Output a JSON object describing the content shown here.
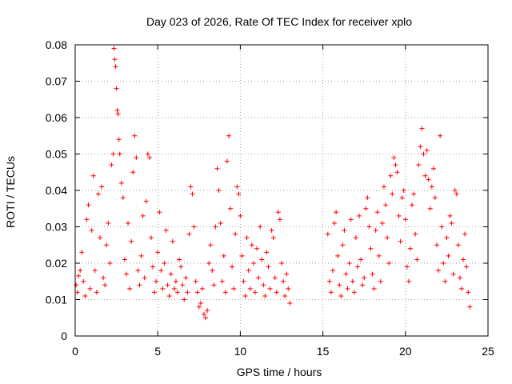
{
  "chart_data": {
    "type": "scatter",
    "title": "Day 023 of 2026, Rate Of TEC Index for receiver xplo",
    "xlabel": "GPS time / hours",
    "ylabel": "ROTI / TECUs",
    "xlim": [
      0,
      25
    ],
    "ylim": [
      0,
      0.08
    ],
    "xticks": [
      0,
      5,
      10,
      15,
      20,
      25
    ],
    "xtick_labels": [
      "0",
      "5",
      "10",
      "15",
      "20",
      "25"
    ],
    "yticks": [
      0,
      0.01,
      0.02,
      0.03,
      0.04,
      0.05,
      0.06,
      0.07,
      0.08
    ],
    "ytick_labels": [
      "0",
      "0.01",
      "0.02",
      "0.03",
      "0.04",
      "0.05",
      "0.06",
      "0.07",
      "0.08"
    ],
    "grid": true,
    "marker": "+",
    "color": "#ff0000",
    "series": [
      {
        "name": "ROTI",
        "points": [
          [
            0.05,
            0.014
          ],
          [
            0.12,
            0.012
          ],
          [
            0.2,
            0.0165
          ],
          [
            0.3,
            0.018
          ],
          [
            0.4,
            0.023
          ],
          [
            0.5,
            0.015
          ],
          [
            0.6,
            0.011
          ],
          [
            0.7,
            0.032
          ],
          [
            0.8,
            0.036
          ],
          [
            0.9,
            0.013
          ],
          [
            1.0,
            0.029
          ],
          [
            1.1,
            0.044
          ],
          [
            1.2,
            0.018
          ],
          [
            1.3,
            0.012
          ],
          [
            1.4,
            0.039
          ],
          [
            1.5,
            0.027
          ],
          [
            1.6,
            0.041
          ],
          [
            1.7,
            0.016
          ],
          [
            1.8,
            0.014
          ],
          [
            1.9,
            0.025
          ],
          [
            2.0,
            0.031
          ],
          [
            2.1,
            0.02
          ],
          [
            2.2,
            0.047
          ],
          [
            2.3,
            0.05
          ],
          [
            2.35,
            0.079
          ],
          [
            2.4,
            0.076
          ],
          [
            2.45,
            0.074
          ],
          [
            2.5,
            0.068
          ],
          [
            2.55,
            0.062
          ],
          [
            2.6,
            0.061
          ],
          [
            2.65,
            0.054
          ],
          [
            2.7,
            0.05
          ],
          [
            2.8,
            0.042
          ],
          [
            2.9,
            0.038
          ],
          [
            3.0,
            0.021
          ],
          [
            3.1,
            0.017
          ],
          [
            3.2,
            0.031
          ],
          [
            3.3,
            0.013
          ],
          [
            3.4,
            0.026
          ],
          [
            3.5,
            0.045
          ],
          [
            3.6,
            0.055
          ],
          [
            3.7,
            0.049
          ],
          [
            3.8,
            0.018
          ],
          [
            3.9,
            0.014
          ],
          [
            4.0,
            0.022
          ],
          [
            4.1,
            0.033
          ],
          [
            4.2,
            0.016
          ],
          [
            4.3,
            0.037
          ],
          [
            4.4,
            0.05
          ],
          [
            4.5,
            0.049
          ],
          [
            4.6,
            0.027
          ],
          [
            4.7,
            0.019
          ],
          [
            4.8,
            0.012
          ],
          [
            4.9,
            0.015
          ],
          [
            5.0,
            0.023
          ],
          [
            5.1,
            0.034
          ],
          [
            5.2,
            0.018
          ],
          [
            5.3,
            0.013
          ],
          [
            5.4,
            0.02
          ],
          [
            5.5,
            0.029
          ],
          [
            5.6,
            0.014
          ],
          [
            5.7,
            0.011
          ],
          [
            5.8,
            0.017
          ],
          [
            5.9,
            0.026
          ],
          [
            6.0,
            0.013
          ],
          [
            6.1,
            0.015
          ],
          [
            6.2,
            0.012
          ],
          [
            6.3,
            0.021
          ],
          [
            6.4,
            0.019
          ],
          [
            6.5,
            0.014
          ],
          [
            6.6,
            0.01
          ],
          [
            6.7,
            0.016
          ],
          [
            6.8,
            0.012
          ],
          [
            6.9,
            0.028
          ],
          [
            7.0,
            0.041
          ],
          [
            7.1,
            0.039
          ],
          [
            7.2,
            0.03
          ],
          [
            7.3,
            0.015
          ],
          [
            7.4,
            0.012
          ],
          [
            7.5,
            0.008
          ],
          [
            7.6,
            0.009
          ],
          [
            7.7,
            0.013
          ],
          [
            7.8,
            0.006
          ],
          [
            7.9,
            0.005
          ],
          [
            8.0,
            0.007
          ],
          [
            8.1,
            0.02
          ],
          [
            8.2,
            0.025
          ],
          [
            8.3,
            0.018
          ],
          [
            8.4,
            0.014
          ],
          [
            8.5,
            0.03
          ],
          [
            8.6,
            0.046
          ],
          [
            8.7,
            0.04
          ],
          [
            8.8,
            0.031
          ],
          [
            8.9,
            0.015
          ],
          [
            9.0,
            0.022
          ],
          [
            9.1,
            0.012
          ],
          [
            9.2,
            0.048
          ],
          [
            9.3,
            0.055
          ],
          [
            9.4,
            0.035
          ],
          [
            9.5,
            0.019
          ],
          [
            9.6,
            0.013
          ],
          [
            9.7,
            0.028
          ],
          [
            9.8,
            0.041
          ],
          [
            9.9,
            0.039
          ],
          [
            10.0,
            0.033
          ],
          [
            10.1,
            0.022
          ],
          [
            10.2,
            0.015
          ],
          [
            10.3,
            0.011
          ],
          [
            10.4,
            0.027
          ],
          [
            10.5,
            0.018
          ],
          [
            10.6,
            0.013
          ],
          [
            10.7,
            0.025
          ],
          [
            10.8,
            0.02
          ],
          [
            10.9,
            0.012
          ],
          [
            11.0,
            0.024
          ],
          [
            11.1,
            0.016
          ],
          [
            11.2,
            0.03
          ],
          [
            11.3,
            0.021
          ],
          [
            11.4,
            0.014
          ],
          [
            11.5,
            0.011
          ],
          [
            11.6,
            0.023
          ],
          [
            11.7,
            0.019
          ],
          [
            11.8,
            0.013
          ],
          [
            11.9,
            0.029
          ],
          [
            12.0,
            0.027
          ],
          [
            12.1,
            0.016
          ],
          [
            12.2,
            0.012
          ],
          [
            12.3,
            0.034
          ],
          [
            12.4,
            0.032
          ],
          [
            12.5,
            0.02
          ],
          [
            12.6,
            0.015
          ],
          [
            12.7,
            0.011
          ],
          [
            12.8,
            0.017
          ],
          [
            12.9,
            0.013
          ],
          [
            13.0,
            0.009
          ],
          [
            15.3,
            0.028
          ],
          [
            15.4,
            0.015
          ],
          [
            15.5,
            0.012
          ],
          [
            15.6,
            0.018
          ],
          [
            15.7,
            0.031
          ],
          [
            15.8,
            0.034
          ],
          [
            15.9,
            0.022
          ],
          [
            16.0,
            0.014
          ],
          [
            16.1,
            0.011
          ],
          [
            16.2,
            0.025
          ],
          [
            16.3,
            0.029
          ],
          [
            16.4,
            0.017
          ],
          [
            16.5,
            0.013
          ],
          [
            16.6,
            0.02
          ],
          [
            16.7,
            0.032
          ],
          [
            16.8,
            0.015
          ],
          [
            16.9,
            0.012
          ],
          [
            17.0,
            0.027
          ],
          [
            17.1,
            0.019
          ],
          [
            17.2,
            0.033
          ],
          [
            17.3,
            0.021
          ],
          [
            17.4,
            0.014
          ],
          [
            17.5,
            0.016
          ],
          [
            17.6,
            0.035
          ],
          [
            17.7,
            0.038
          ],
          [
            17.8,
            0.03
          ],
          [
            17.9,
            0.024
          ],
          [
            18.0,
            0.017
          ],
          [
            18.1,
            0.013
          ],
          [
            18.2,
            0.029
          ],
          [
            18.3,
            0.034
          ],
          [
            18.4,
            0.022
          ],
          [
            18.5,
            0.015
          ],
          [
            18.6,
            0.031
          ],
          [
            18.7,
            0.041
          ],
          [
            18.8,
            0.036
          ],
          [
            18.9,
            0.027
          ],
          [
            19.0,
            0.02
          ],
          [
            19.1,
            0.044
          ],
          [
            19.2,
            0.039
          ],
          [
            19.3,
            0.049
          ],
          [
            19.4,
            0.047
          ],
          [
            19.5,
            0.045
          ],
          [
            19.6,
            0.033
          ],
          [
            19.7,
            0.026
          ],
          [
            19.8,
            0.038
          ],
          [
            19.9,
            0.04
          ],
          [
            20.0,
            0.032
          ],
          [
            20.1,
            0.019
          ],
          [
            20.2,
            0.015
          ],
          [
            20.3,
            0.024
          ],
          [
            20.4,
            0.036
          ],
          [
            20.5,
            0.039
          ],
          [
            20.6,
            0.028
          ],
          [
            20.7,
            0.021
          ],
          [
            20.8,
            0.047
          ],
          [
            20.9,
            0.052
          ],
          [
            21.0,
            0.057
          ],
          [
            21.1,
            0.05
          ],
          [
            21.2,
            0.044
          ],
          [
            21.3,
            0.051
          ],
          [
            21.4,
            0.043
          ],
          [
            21.5,
            0.035
          ],
          [
            21.6,
            0.041
          ],
          [
            21.7,
            0.046
          ],
          [
            21.8,
            0.038
          ],
          [
            21.9,
            0.025
          ],
          [
            22.0,
            0.018
          ],
          [
            22.1,
            0.055
          ],
          [
            22.2,
            0.03
          ],
          [
            22.3,
            0.02
          ],
          [
            22.4,
            0.015
          ],
          [
            22.5,
            0.027
          ],
          [
            22.6,
            0.022
          ],
          [
            22.7,
            0.033
          ],
          [
            22.8,
            0.031
          ],
          [
            22.9,
            0.017
          ],
          [
            23.0,
            0.04
          ],
          [
            23.1,
            0.039
          ],
          [
            23.2,
            0.025
          ],
          [
            23.3,
            0.016
          ],
          [
            23.4,
            0.013
          ],
          [
            23.5,
            0.021
          ],
          [
            23.6,
            0.028
          ],
          [
            23.7,
            0.019
          ],
          [
            23.8,
            0.012
          ],
          [
            23.9,
            0.008
          ]
        ]
      }
    ]
  }
}
